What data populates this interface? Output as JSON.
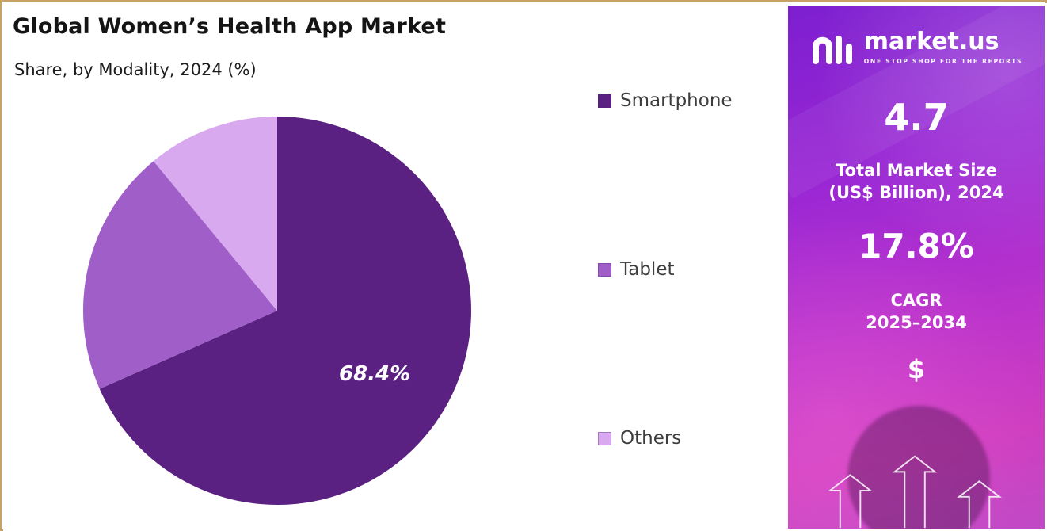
{
  "chart_data": {
    "type": "pie",
    "title": "Global Women’s Health App Market",
    "subtitle": "Share, by Modality, 2024 (%)",
    "categories": [
      "Smartphone",
      "Tablet",
      "Others"
    ],
    "values": [
      68.4,
      20.6,
      11.0
    ],
    "colors": [
      "#5b2182",
      "#a05ec9",
      "#d9a9ef"
    ],
    "value_labels": [
      {
        "slice": 0,
        "text": "68.4%"
      }
    ],
    "legend_position": "right",
    "start_angle_deg": 0,
    "direction": "clockwise"
  },
  "sidebar": {
    "brand": {
      "name": "market.us",
      "tagline": "ONE STOP SHOP FOR THE REPORTS"
    },
    "market_size": {
      "value": "4.7",
      "label_line1": "Total Market Size",
      "label_line2": "(US$ Billion), 2024"
    },
    "cagr": {
      "value": "17.8%",
      "label_line1": "CAGR",
      "label_line2": "2025–2034"
    },
    "currency_symbol": "$",
    "colors": {
      "gradient_top": "#7d1fd0",
      "gradient_bottom": "#c04ac6",
      "text": "#ffffff"
    }
  },
  "frame": {
    "border_color": "#c8a165"
  }
}
